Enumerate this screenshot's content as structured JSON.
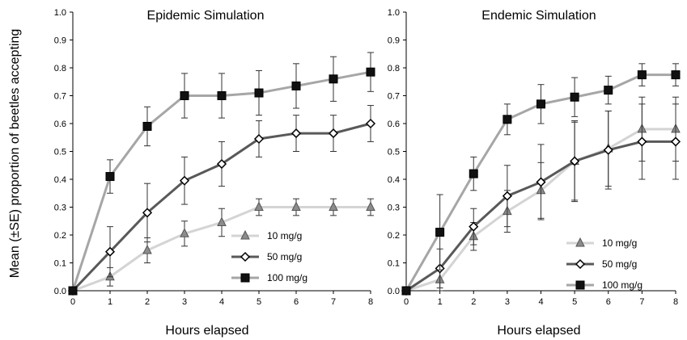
{
  "figure": {
    "ylabel": "Mean (±SE) proportion of beetles accepting"
  },
  "chart_data": [
    {
      "type": "line",
      "title": "Epidemic Simulation",
      "xlabel": "Hours elapsed",
      "ylabel": "Mean (±SE) proportion of beetles accepting",
      "x": [
        0,
        1,
        2,
        3,
        4,
        5,
        6,
        7,
        8
      ],
      "xlim": [
        0,
        8
      ],
      "ylim": [
        0,
        1.0
      ],
      "yticks": [
        "0.0",
        "0.1",
        "0.2",
        "0.3",
        "0.4",
        "0.5",
        "0.6",
        "0.7",
        "0.8",
        "0.9",
        "1.0"
      ],
      "xticks": [
        "0",
        "1",
        "2",
        "3",
        "4",
        "5",
        "6",
        "7",
        "8"
      ],
      "grid": false,
      "legend_position": "lower-right",
      "series": [
        {
          "name": "10 mg/g",
          "marker": "triangle",
          "line_color": "#d4d4d4",
          "marker_fill": "#8c8c8c",
          "values": [
            0,
            0.05,
            0.145,
            0.205,
            0.245,
            0.3,
            0.3,
            0.3,
            0.3
          ],
          "errors": [
            0,
            0.033,
            0.045,
            0.045,
            0.05,
            0.03,
            0.03,
            0.03,
            0.03
          ]
        },
        {
          "name": "50 mg/g",
          "marker": "diamond",
          "line_color": "#595959",
          "marker_fill": "#ffffff",
          "values": [
            0,
            0.14,
            0.28,
            0.395,
            0.455,
            0.545,
            0.565,
            0.565,
            0.6
          ],
          "errors": [
            0,
            0.09,
            0.105,
            0.085,
            0.08,
            0.065,
            0.065,
            0.065,
            0.065
          ]
        },
        {
          "name": "100 mg/g",
          "marker": "square",
          "line_color": "#a6a6a6",
          "marker_fill": "#111111",
          "values": [
            0,
            0.41,
            0.59,
            0.7,
            0.7,
            0.71,
            0.735,
            0.76,
            0.785
          ],
          "errors": [
            0,
            0.06,
            0.07,
            0.08,
            0.08,
            0.08,
            0.08,
            0.08,
            0.07
          ]
        }
      ]
    },
    {
      "type": "line",
      "title": "Endemic Simulation",
      "xlabel": "Hours elapsed",
      "x": [
        0,
        1,
        2,
        3,
        4,
        5,
        6,
        7,
        8
      ],
      "xlim": [
        0,
        8
      ],
      "ylim": [
        0,
        1.0
      ],
      "yticks": [
        "0.0",
        "0.1",
        "0.2",
        "0.3",
        "0.4",
        "0.5",
        "0.6",
        "0.7",
        "0.8",
        "0.9",
        "1.0"
      ],
      "xticks": [
        "0",
        "1",
        "2",
        "3",
        "4",
        "5",
        "6",
        "7",
        "8"
      ],
      "grid": false,
      "legend_position": "lower-right",
      "series": [
        {
          "name": "10 mg/g",
          "marker": "triangle",
          "line_color": "#d4d4d4",
          "marker_fill": "#8c8c8c",
          "values": [
            0,
            0.04,
            0.195,
            0.285,
            0.36,
            0.465,
            0.51,
            0.58,
            0.58
          ],
          "errors": [
            0,
            0.04,
            0.05,
            0.075,
            0.1,
            0.14,
            0.135,
            0.115,
            0.115
          ]
        },
        {
          "name": "50 mg/g",
          "marker": "diamond",
          "line_color": "#595959",
          "marker_fill": "#ffffff",
          "values": [
            0,
            0.08,
            0.23,
            0.34,
            0.39,
            0.465,
            0.505,
            0.535,
            0.535
          ],
          "errors": [
            0,
            0.07,
            0.065,
            0.11,
            0.135,
            0.145,
            0.14,
            0.135,
            0.135
          ]
        },
        {
          "name": "100 mg/g",
          "marker": "square",
          "line_color": "#a6a6a6",
          "marker_fill": "#111111",
          "values": [
            0,
            0.21,
            0.42,
            0.615,
            0.67,
            0.695,
            0.72,
            0.775,
            0.775
          ],
          "errors": [
            0,
            0.135,
            0.06,
            0.055,
            0.07,
            0.07,
            0.05,
            0.04,
            0.04
          ]
        }
      ]
    }
  ]
}
